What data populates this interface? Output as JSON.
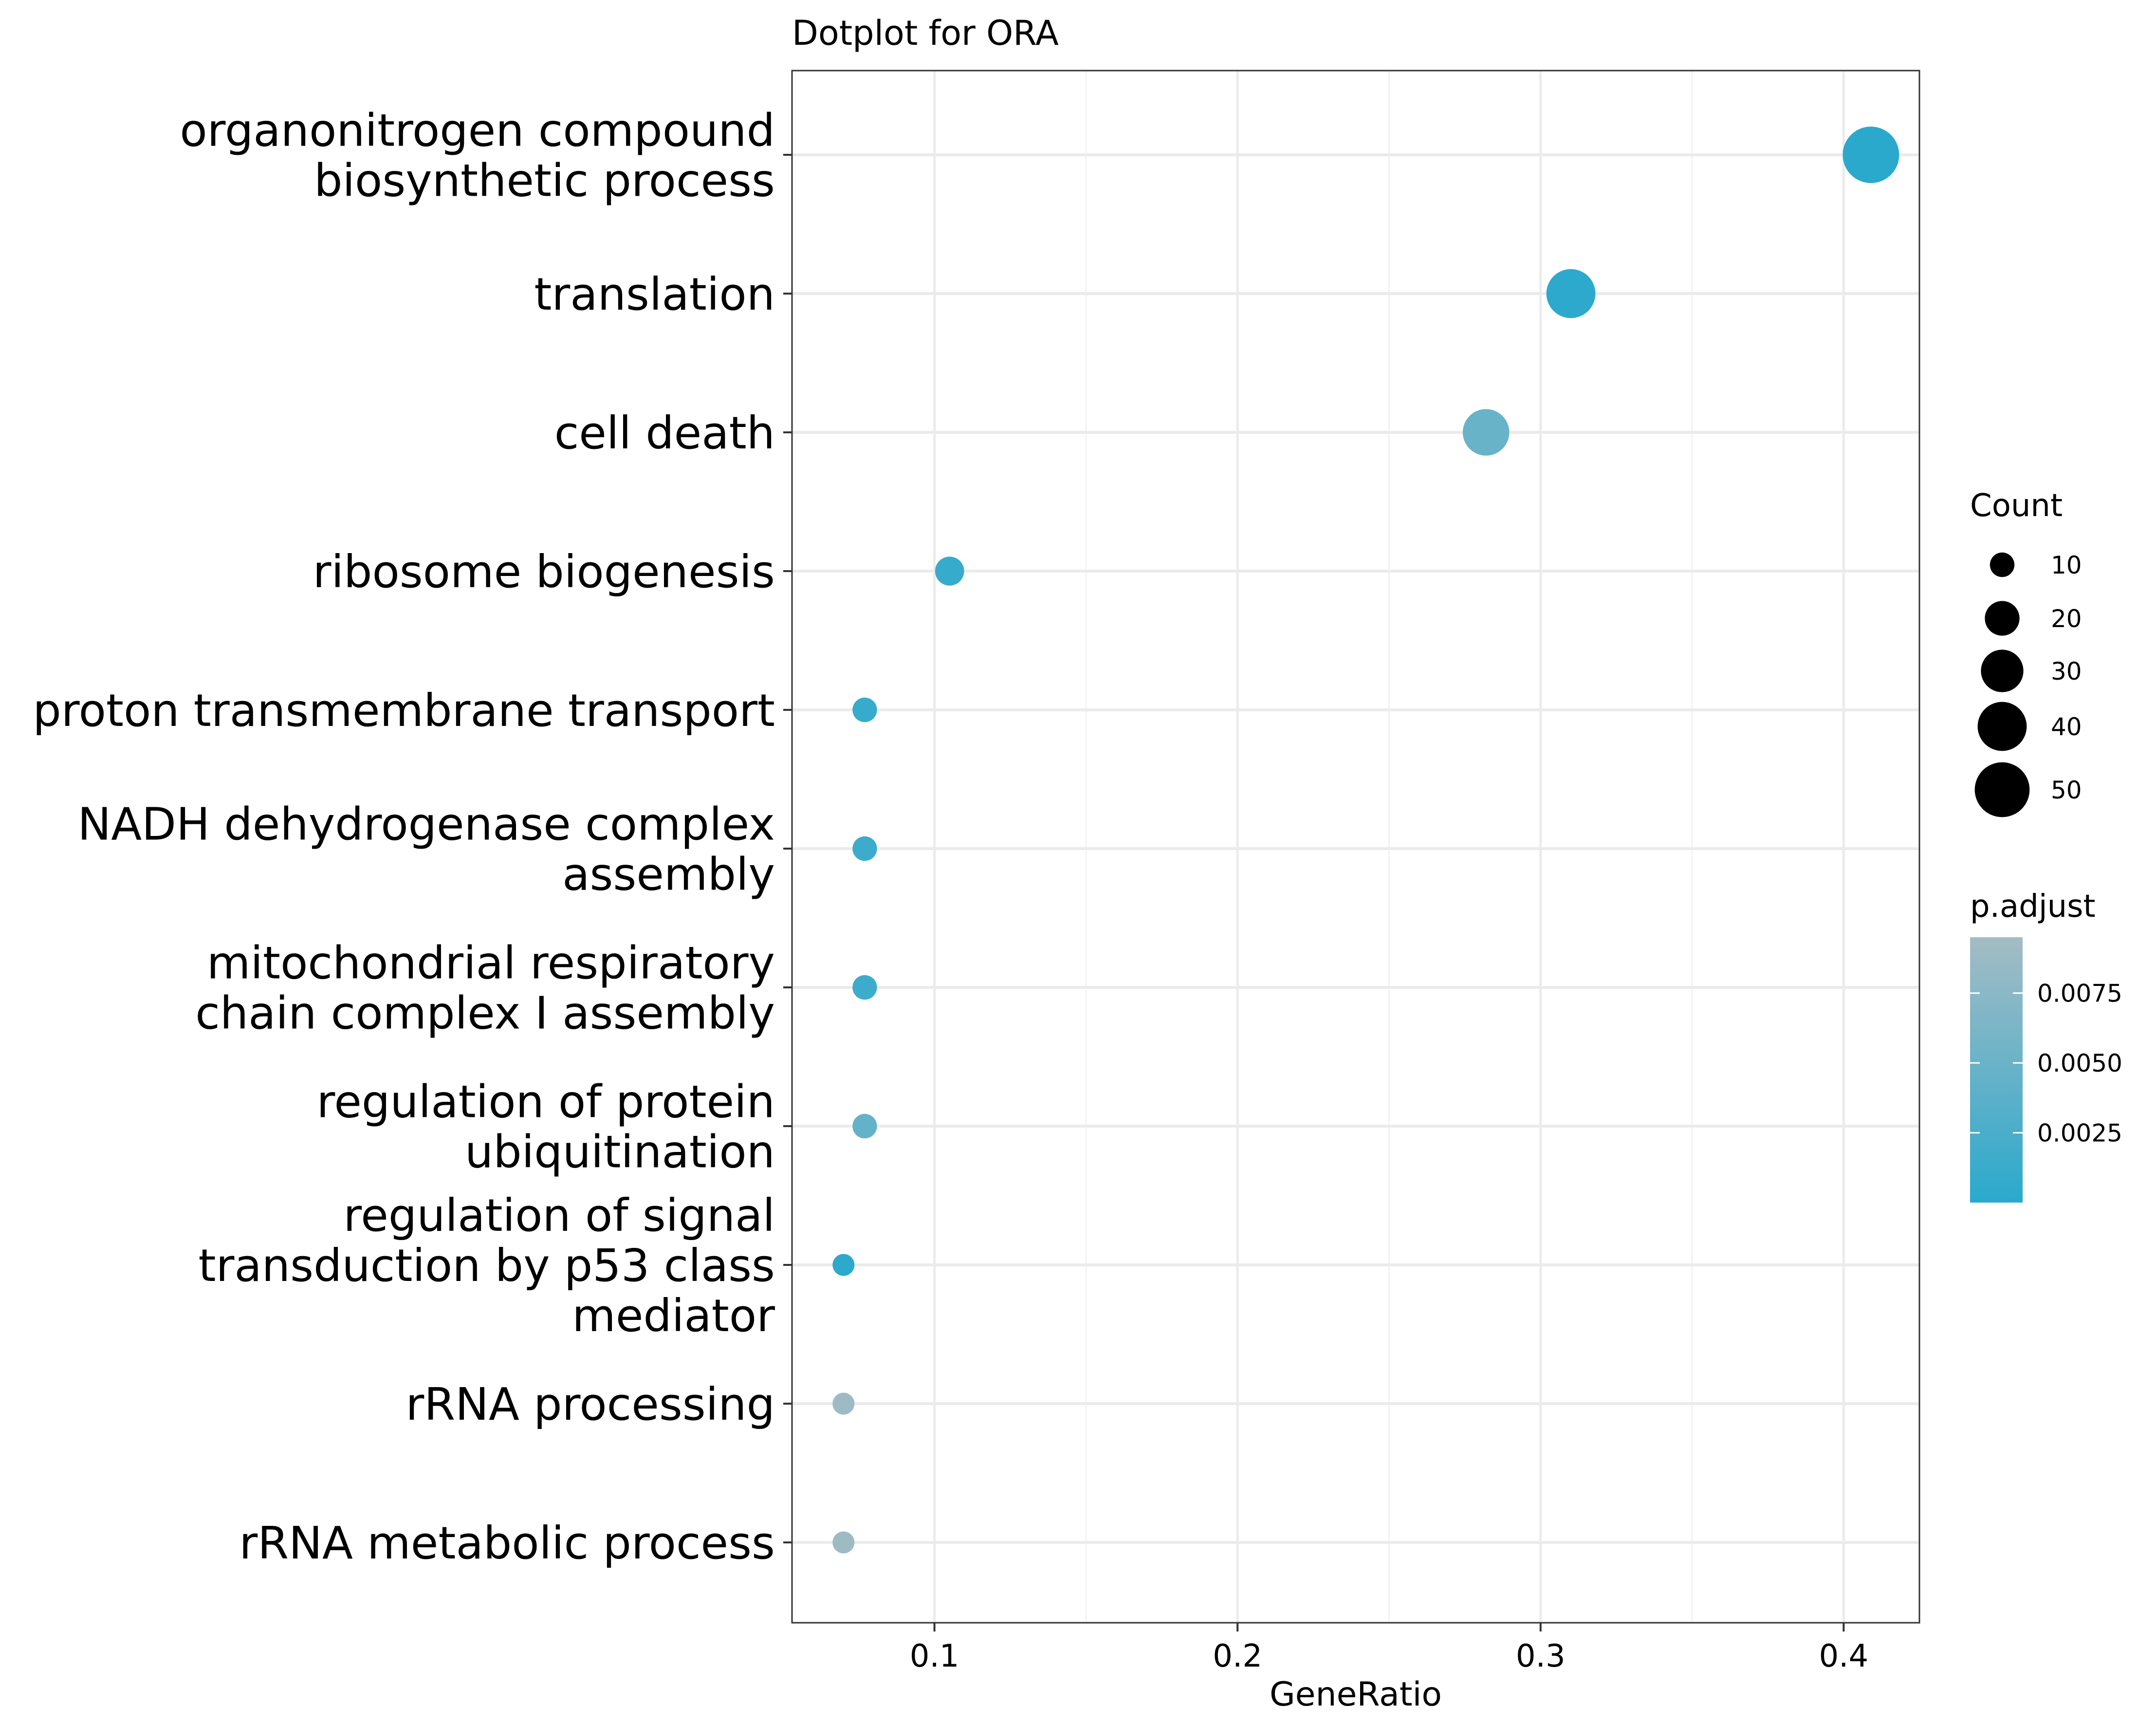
{
  "chart_data": {
    "type": "scatter",
    "title": "Dotplot for ORA",
    "xlabel": "GeneRatio",
    "ylabel": "",
    "xlim": [
      0.053,
      0.425
    ],
    "xticks": [
      0.1,
      0.2,
      0.3,
      0.4
    ],
    "xtick_labels": [
      "0.1",
      "0.2",
      "0.3",
      "0.4"
    ],
    "x_minor_ticks": [
      0.15,
      0.25,
      0.35
    ],
    "grid": true,
    "categories": [
      [
        "organonitrogen compound",
        "biosynthetic process"
      ],
      [
        "translation"
      ],
      [
        "cell death"
      ],
      [
        "ribosome biogenesis"
      ],
      [
        "proton transmembrane transport"
      ],
      [
        "NADH dehydrogenase complex",
        "assembly"
      ],
      [
        "mitochondrial respiratory",
        "chain complex I assembly"
      ],
      [
        "regulation of protein",
        "ubiquitination"
      ],
      [
        "regulation of signal",
        "transduction by p53 class",
        "mediator"
      ],
      [
        "rRNA processing"
      ],
      [
        "rRNA metabolic process"
      ]
    ],
    "points": [
      {
        "x": 0.409,
        "count": 53,
        "p_adjust": 0.0001
      },
      {
        "x": 0.31,
        "count": 40,
        "p_adjust": 0.0002
      },
      {
        "x": 0.282,
        "count": 36,
        "p_adjust": 0.0048
      },
      {
        "x": 0.105,
        "count": 14,
        "p_adjust": 0.001
      },
      {
        "x": 0.077,
        "count": 10,
        "p_adjust": 0.001
      },
      {
        "x": 0.077,
        "count": 10,
        "p_adjust": 0.0015
      },
      {
        "x": 0.077,
        "count": 10,
        "p_adjust": 0.0015
      },
      {
        "x": 0.077,
        "count": 10,
        "p_adjust": 0.0045
      },
      {
        "x": 0.07,
        "count": 8,
        "p_adjust": 0.0002
      },
      {
        "x": 0.07,
        "count": 8,
        "p_adjust": 0.009
      },
      {
        "x": 0.07,
        "count": 8,
        "p_adjust": 0.009
      }
    ],
    "size_legend": {
      "title": "Count",
      "values": [
        10,
        20,
        30,
        40,
        50
      ],
      "labels": [
        "10",
        "20",
        "30",
        "40",
        "50"
      ]
    },
    "color_legend": {
      "title": "p.adjust",
      "range": [
        0.0,
        0.0095
      ],
      "ticks": [
        0.0025,
        0.005,
        0.0075
      ],
      "tick_labels": [
        "0.0025",
        "0.0050",
        "0.0075"
      ],
      "low_color": "#2aa9cd",
      "high_color": "#a4bcc4"
    },
    "legend_position": "right"
  }
}
